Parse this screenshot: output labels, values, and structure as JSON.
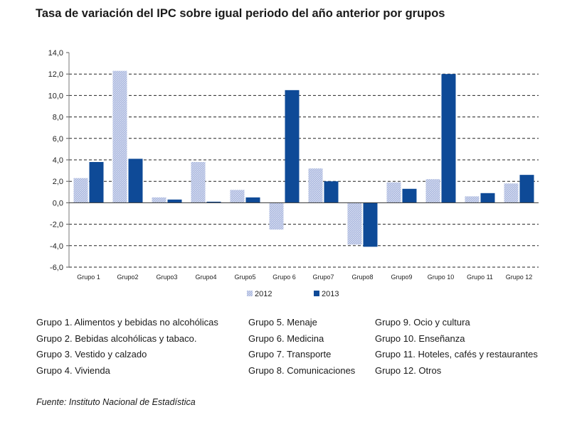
{
  "title": "Tasa de variación del IPC sobre igual periodo del año anterior por grupos",
  "chart_data": {
    "type": "bar",
    "categories": [
      "Grupo 1",
      "Grupo2",
      "Grupo3",
      "Grupo4",
      "Grupo5",
      "Grupo 6",
      "Grupo7",
      "Grupo8",
      "Grupo9",
      "Grupo 10",
      "Grupo 11",
      "Grupo 12"
    ],
    "series": [
      {
        "name": "2012",
        "color": "#a9b6de",
        "values": [
          2.3,
          12.3,
          0.5,
          3.8,
          1.2,
          -2.5,
          3.2,
          -3.9,
          1.9,
          2.2,
          0.6,
          1.8
        ]
      },
      {
        "name": "2013",
        "color": "#0e4a97",
        "values": [
          3.8,
          4.1,
          0.3,
          0.1,
          0.5,
          10.5,
          2.0,
          -4.1,
          1.3,
          12.0,
          0.9,
          2.6
        ]
      }
    ],
    "ylim": [
      -6,
      14
    ],
    "yticks": [
      "14,0",
      "12,0",
      "10,0",
      "8,0",
      "6,0",
      "4,0",
      "2,0",
      "0,0",
      "-2,0",
      "-4,0",
      "-6,0"
    ],
    "grid": "dashed-horizontal",
    "legend_position": "bottom-center"
  },
  "groups_legend": [
    [
      "Grupo 1. Alimentos y bebidas no alcohólicas",
      "Grupo 2. Bebidas alcohólicas y  tabaco.",
      "Grupo 3. Vestido y calzado",
      "Grupo 4. Vivienda"
    ],
    [
      "Grupo 5. Menaje",
      "Grupo 6. Medicina",
      "Grupo 7. Transporte",
      "Grupo 8. Comunicaciones"
    ],
    [
      "Grupo 9. Ocio y cultura",
      "Grupo 10. Enseñanza",
      "Grupo 11. Hoteles, cafés y restaurantes",
      "Grupo 12. Otros"
    ]
  ],
  "source": "Fuente: Instituto Nacional de Estadística"
}
